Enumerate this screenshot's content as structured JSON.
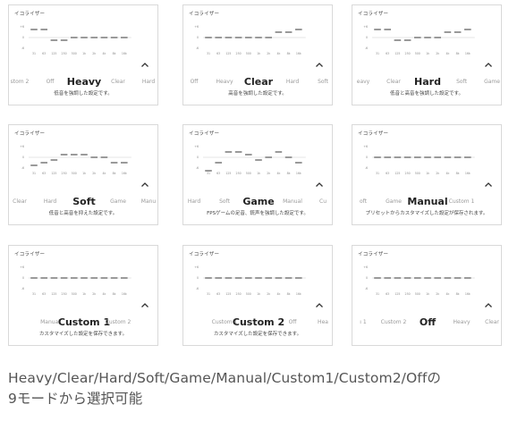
{
  "cards": [
    {
      "title": "イコライザー",
      "modes": [
        "stom 2",
        "Off",
        "Heavy",
        "Clear",
        "Hard"
      ],
      "selected_index": 2,
      "levels": [
        3,
        3,
        -1,
        -1,
        0,
        0,
        0,
        0,
        0,
        0
      ],
      "description": "低音を強調した設定です。"
    },
    {
      "title": "イコライザー",
      "modes": [
        "Off",
        "Heavy",
        "Clear",
        "Hard",
        "Soft"
      ],
      "selected_index": 2,
      "levels": [
        0,
        0,
        0,
        0,
        0,
        0,
        0,
        2,
        2,
        3
      ],
      "description": "高音を強調した設定です。"
    },
    {
      "title": "イコライザー",
      "modes": [
        "eavy",
        "Clear",
        "Hard",
        "Soft",
        "Game"
      ],
      "selected_index": 2,
      "levels": [
        3,
        3,
        -1,
        -1,
        0,
        0,
        0,
        2,
        2,
        3
      ],
      "description": "低音と高音を強調した設定です。"
    },
    {
      "title": "イコライザー",
      "modes": [
        "Clear",
        "Hard",
        "Soft",
        "Game",
        "Manu"
      ],
      "selected_index": 2,
      "levels": [
        -3,
        -2,
        -1,
        1,
        1,
        1,
        0,
        0,
        -2,
        -2
      ],
      "description": "低音と高音を抑えた設定です。"
    },
    {
      "title": "イコライザー",
      "modes": [
        "Hard",
        "Soft",
        "Game",
        "Manual",
        "Cu"
      ],
      "selected_index": 2,
      "levels": [
        -5,
        -2,
        2,
        2,
        1,
        -1,
        0,
        2,
        0,
        -2
      ],
      "description": "FPSゲームの足音、銃声を強調した設定です。"
    },
    {
      "title": "イコライザー",
      "modes": [
        "oft",
        "Game",
        "Manual",
        "Custom 1"
      ],
      "selected_index": 2,
      "levels": [
        0,
        0,
        0,
        0,
        0,
        0,
        0,
        0,
        0,
        0
      ],
      "description": "プリセットからカスタマイズした設定が保存されます。"
    },
    {
      "title": "イコライザー",
      "modes": [
        "Manual",
        "Custom 1",
        "Custom 2"
      ],
      "selected_index": 1,
      "levels": [
        0,
        0,
        0,
        0,
        0,
        0,
        0,
        0,
        0,
        0
      ],
      "description": "カスタマイズした設定を保存できます。"
    },
    {
      "title": "イコライザー",
      "modes": [
        "Custom 1",
        "Custom 2",
        "Off",
        "Hea"
      ],
      "selected_index": 1,
      "levels": [
        0,
        0,
        0,
        0,
        0,
        0,
        0,
        0,
        0,
        0
      ],
      "description": "カスタマイズした設定を保存できます。"
    },
    {
      "title": "イコライザー",
      "modes": [
        "ı 1",
        "Custom 2",
        "Off",
        "Heavy",
        "Clear"
      ],
      "selected_index": 2,
      "levels": [
        0,
        0,
        0,
        0,
        0,
        0,
        0,
        0,
        0,
        0
      ],
      "description": ""
    }
  ],
  "eq_axis": {
    "y_ticks": [
      "+6",
      "0",
      "-6"
    ],
    "bands": [
      "31",
      "63",
      "125",
      "250",
      "500",
      "1k",
      "2k",
      "4k",
      "8k",
      "16k"
    ]
  },
  "caption": {
    "line1": "Heavy/Clear/Hard/Soft/Game/Manual/Custom1/Custom2/Offの",
    "line2": "9モードから選択可能"
  },
  "colors": {
    "bar": "#6f6f6f",
    "baseline": "#cccccc",
    "card_border": "#d9d9d9",
    "selected_text": "#222222",
    "unselected_text": "#9a9a9a"
  },
  "icons": {
    "collapse": "chevron-up-icon"
  }
}
